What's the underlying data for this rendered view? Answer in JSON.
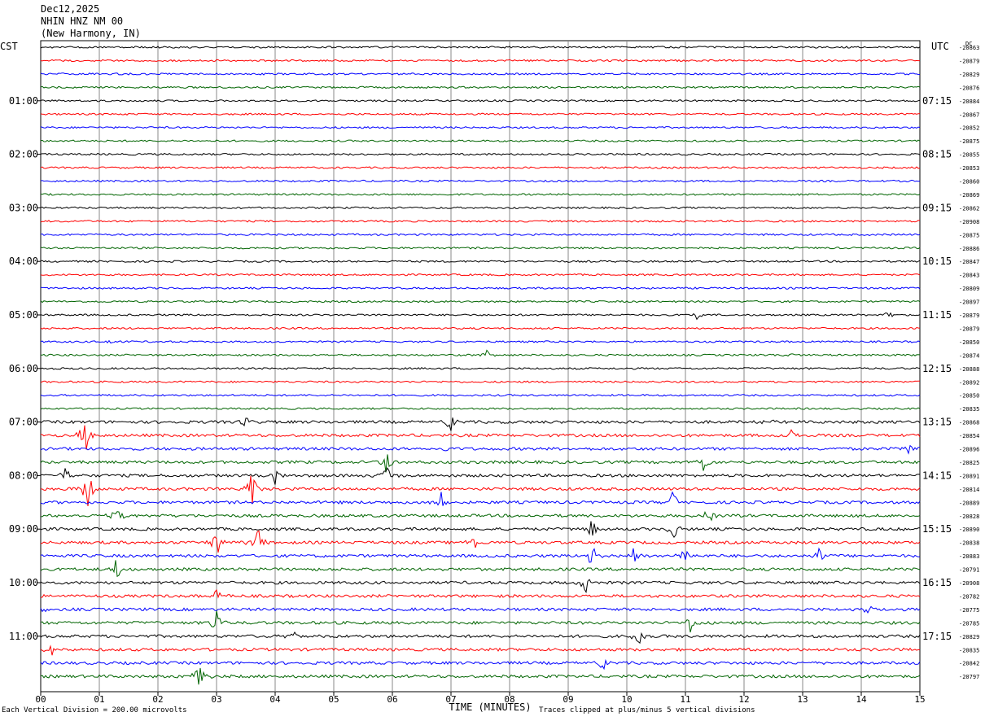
{
  "header": {
    "date": "Dec12,2025",
    "station": "NHIN HNZ NM 00",
    "location": "(New Harmony, IN)"
  },
  "left_tz": "CST",
  "right_tz": "UTC",
  "dc_label": "DC",
  "footer": {
    "scale_note": "Each Vertical Division =  200.00 microvolts",
    "clip_note": "Traces clipped at plus/minus 5 vertical divisions"
  },
  "chart_data": {
    "type": "line",
    "xlabel": "TIME (MINUTES)",
    "xlim": [
      0,
      15
    ],
    "x_ticks": [
      "00",
      "01",
      "02",
      "03",
      "04",
      "05",
      "06",
      "07",
      "08",
      "09",
      "10",
      "11",
      "12",
      "13",
      "14",
      "15"
    ],
    "trace_colors": [
      "#000000",
      "#ff0000",
      "#0000ff",
      "#006400"
    ],
    "left_hour_labels": [
      {
        "row": 4,
        "label": "01:00"
      },
      {
        "row": 8,
        "label": "02:00"
      },
      {
        "row": 12,
        "label": "03:00"
      },
      {
        "row": 16,
        "label": "04:00"
      },
      {
        "row": 20,
        "label": "05:00"
      },
      {
        "row": 24,
        "label": "06:00"
      },
      {
        "row": 28,
        "label": "07:00"
      },
      {
        "row": 32,
        "label": "08:00"
      },
      {
        "row": 36,
        "label": "09:00"
      },
      {
        "row": 40,
        "label": "10:00"
      },
      {
        "row": 44,
        "label": "11:00"
      }
    ],
    "right_hour_labels": [
      {
        "row": 4,
        "label": "07:15"
      },
      {
        "row": 8,
        "label": "08:15"
      },
      {
        "row": 12,
        "label": "09:15"
      },
      {
        "row": 16,
        "label": "10:15"
      },
      {
        "row": 20,
        "label": "11:15"
      },
      {
        "row": 24,
        "label": "12:15"
      },
      {
        "row": 28,
        "label": "13:15"
      },
      {
        "row": 32,
        "label": "14:15"
      },
      {
        "row": 36,
        "label": "15:15"
      },
      {
        "row": 40,
        "label": "16:15"
      },
      {
        "row": 44,
        "label": "17:15"
      }
    ],
    "dc_offsets": [
      "-20863",
      "-20879",
      "-20829",
      "-20876",
      "-20884",
      "-20867",
      "-20852",
      "-20875",
      "-20855",
      "-20853",
      "-20860",
      "-20869",
      "-20862",
      "-20908",
      "-20875",
      "-20886",
      "-20847",
      "-20843",
      "-20809",
      "-20897",
      "-20879",
      "-20879",
      "-20850",
      "-20874",
      "-20888",
      "-20892",
      "-20850",
      "-20835",
      "-20868",
      "-20854",
      "-20896",
      "-20825",
      "-20891",
      "-20814",
      "-20889",
      "-20828",
      "-20890",
      "-20838",
      "-20883",
      "-20791",
      "-20908",
      "-20782",
      "-20775",
      "-20785",
      "-20829",
      "-20835",
      "-20842",
      "-20797"
    ],
    "events": [
      {
        "row": 20,
        "minute": 11.2,
        "amp": 1.2
      },
      {
        "row": 20,
        "minute": 14.5,
        "amp": 1.4
      },
      {
        "row": 22,
        "minute": 1.2,
        "amp": 0.8
      },
      {
        "row": 23,
        "minute": 7.6,
        "amp": 1.0
      },
      {
        "row": 23,
        "minute": 12.8,
        "amp": 0.8
      },
      {
        "row": 28,
        "minute": 3.5,
        "amp": 1.0
      },
      {
        "row": 28,
        "minute": 7.0,
        "amp": 2.5
      },
      {
        "row": 28,
        "minute": 12.5,
        "amp": 1.2
      },
      {
        "row": 29,
        "minute": 0.75,
        "amp": 6.0
      },
      {
        "row": 29,
        "minute": 12.8,
        "amp": 2.0
      },
      {
        "row": 30,
        "minute": 6.8,
        "amp": 3.0
      },
      {
        "row": 30,
        "minute": 14.8,
        "amp": 1.8
      },
      {
        "row": 31,
        "minute": 5.9,
        "amp": 3.0
      },
      {
        "row": 31,
        "minute": 11.3,
        "amp": 2.5
      },
      {
        "row": 32,
        "minute": 0.4,
        "amp": 2.0
      },
      {
        "row": 32,
        "minute": 4.0,
        "amp": 1.6
      },
      {
        "row": 32,
        "minute": 5.9,
        "amp": 2.5
      },
      {
        "row": 33,
        "minute": 0.8,
        "amp": 5.0
      },
      {
        "row": 33,
        "minute": 3.6,
        "amp": 5.0
      },
      {
        "row": 34,
        "minute": 6.8,
        "amp": 5.0
      },
      {
        "row": 34,
        "minute": 10.8,
        "amp": 3.0
      },
      {
        "row": 35,
        "minute": 1.3,
        "amp": 2.0
      },
      {
        "row": 35,
        "minute": 11.4,
        "amp": 2.0
      },
      {
        "row": 36,
        "minute": 9.4,
        "amp": 2.5
      },
      {
        "row": 36,
        "minute": 10.8,
        "amp": 2.5
      },
      {
        "row": 37,
        "minute": 3.0,
        "amp": 3.5
      },
      {
        "row": 37,
        "minute": 3.7,
        "amp": 4.5
      },
      {
        "row": 37,
        "minute": 7.4,
        "amp": 2.5
      },
      {
        "row": 38,
        "minute": 9.4,
        "amp": 3.0
      },
      {
        "row": 38,
        "minute": 10.1,
        "amp": 2.0
      },
      {
        "row": 38,
        "minute": 11.0,
        "amp": 2.5
      },
      {
        "row": 38,
        "minute": 13.3,
        "amp": 3.0
      },
      {
        "row": 39,
        "minute": 1.3,
        "amp": 2.5
      },
      {
        "row": 40,
        "minute": 9.3,
        "amp": 2.5
      },
      {
        "row": 41,
        "minute": 3.0,
        "amp": 1.5
      },
      {
        "row": 42,
        "minute": 0.1,
        "amp": 1.0
      },
      {
        "row": 42,
        "minute": 14.1,
        "amp": 1.2
      },
      {
        "row": 43,
        "minute": 3.0,
        "amp": 3.0
      },
      {
        "row": 43,
        "minute": 11.1,
        "amp": 2.5
      },
      {
        "row": 44,
        "minute": 4.3,
        "amp": 1.6
      },
      {
        "row": 44,
        "minute": 10.2,
        "amp": 2.0
      },
      {
        "row": 45,
        "minute": 0.2,
        "amp": 1.6
      },
      {
        "row": 46,
        "minute": 9.6,
        "amp": 2.0
      },
      {
        "row": 47,
        "minute": 2.7,
        "amp": 4.0
      }
    ]
  }
}
